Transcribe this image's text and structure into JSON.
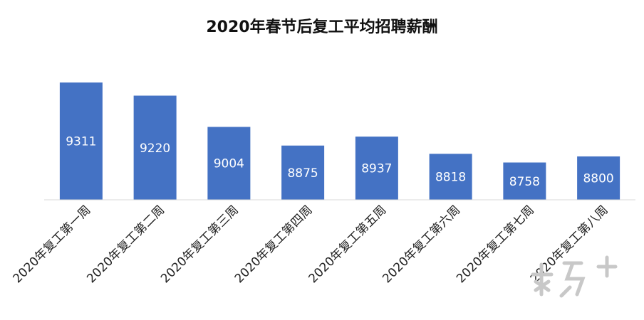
{
  "chart_data": {
    "type": "bar",
    "title": "2020年春节后复工平均招聘薪酬",
    "categories": [
      "2020年复工第一周",
      "2020年复工第二周",
      "2020年复工第三周",
      "2020年复工第四周",
      "2020年复工第五周",
      "2020年复工第六周",
      "2020年复工第七周",
      "2020年复工第八周"
    ],
    "values": [
      9311,
      9220,
      9004,
      8875,
      8937,
      8818,
      8758,
      8800
    ],
    "ylim": [
      8500,
      9400
    ],
    "bar_color": "#4472C4",
    "data_label_color": "#ffffff",
    "grid": false,
    "legend": "none"
  },
  "watermark": {
    "icon": "nanfang-plus-logo-icon",
    "color": "#c8c8c8"
  }
}
